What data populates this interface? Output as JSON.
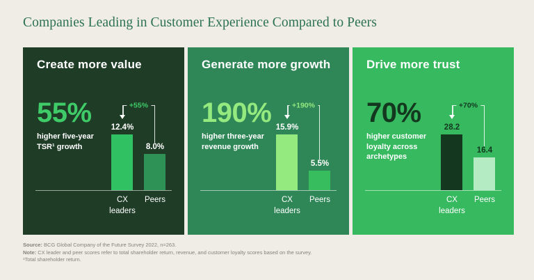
{
  "page": {
    "title": "Companies Leading in Customer Experience Compared to Peers",
    "background": "#f0ece6",
    "title_color": "#2b7154"
  },
  "chart_data": [
    {
      "type": "bar",
      "panel_title": "Create more value",
      "headline_stat": "55%",
      "headline_caption": "higher five-year\nTSR¹ growth",
      "annotation": "+55%",
      "categories": [
        "CX\nleaders",
        "Peers"
      ],
      "values": [
        12.4,
        8.0
      ],
      "value_labels": [
        "12.4%",
        "8.0%"
      ],
      "legend_position": "none",
      "grid": false,
      "colors": {
        "panel_bg": "#1e3c26",
        "accent": "#3ecb68",
        "bar_cx": "#2fc162",
        "bar_peers": "#2e9156",
        "value_label": "#ffffff",
        "axis_label": "#ffffff"
      }
    },
    {
      "type": "bar",
      "panel_title": "Generate more growth",
      "headline_stat": "190%",
      "headline_caption": "higher three-year\nrevenue growth",
      "annotation": "+190%",
      "categories": [
        "CX\nleaders",
        "Peers"
      ],
      "values": [
        15.9,
        5.5
      ],
      "value_labels": [
        "15.9%",
        "5.5%"
      ],
      "legend_position": "none",
      "grid": false,
      "colors": {
        "panel_bg": "#2f8757",
        "accent": "#94e97f",
        "bar_cx": "#94e97f",
        "bar_peers": "#38bd5e",
        "value_label": "#ffffff",
        "axis_label": "#ffffff"
      }
    },
    {
      "type": "bar",
      "panel_title": "Drive more trust",
      "headline_stat": "70%",
      "headline_caption": "higher customer\nloyalty across\narchetypes",
      "annotation": "+70%",
      "categories": [
        "CX\nleaders",
        "Peers"
      ],
      "values": [
        28.2,
        16.4
      ],
      "value_labels": [
        "28.2",
        "16.4"
      ],
      "legend_position": "none",
      "grid": false,
      "colors": {
        "panel_bg": "#36b95f",
        "accent": "#14381f",
        "bar_cx": "#14381f",
        "bar_peers": "#b5ebc2",
        "value_label": "#14381f",
        "axis_label": "#ffffff"
      }
    }
  ],
  "footer": {
    "source_label": "Source:",
    "source_text": " BCG Global Company of the Future Survey 2022, n=263.",
    "note_label": "Note:",
    "note_text": " CX leader and peer scores refer to total shareholder return, revenue, and customer loyalty scores based on the survey.",
    "footnote": "¹Total shareholder return."
  }
}
